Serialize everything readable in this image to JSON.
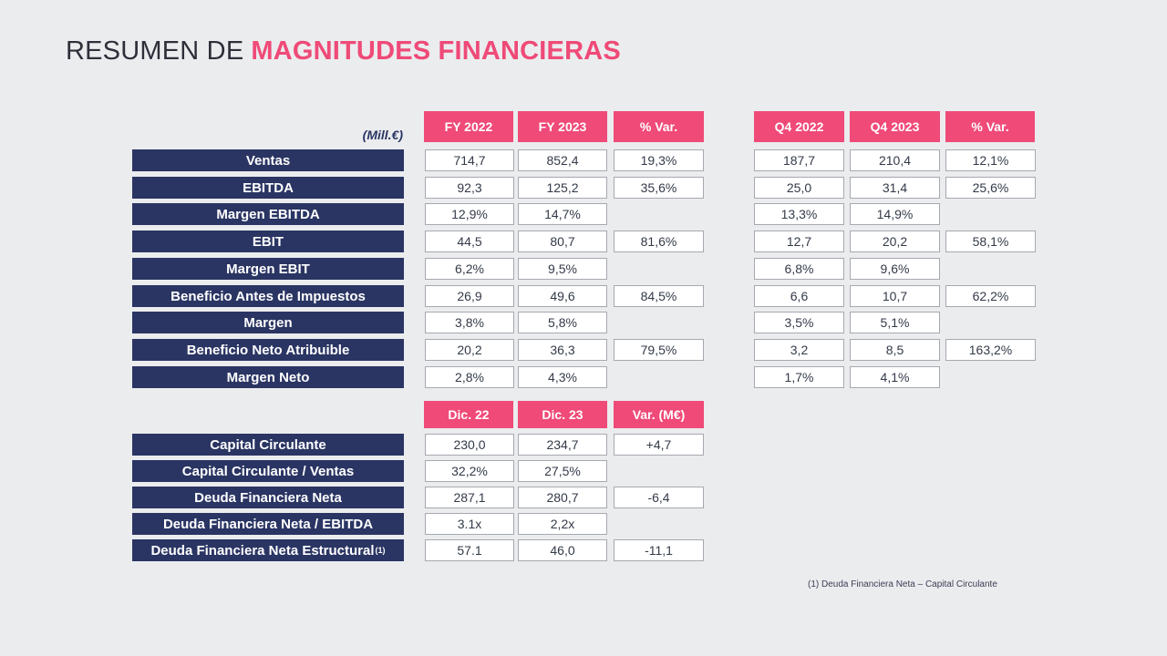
{
  "title": {
    "part1": "RESUMEN DE",
    "part2": "MAGNITUDES FINANCIERAS"
  },
  "units": "(Mill.€)",
  "headers_top": [
    "FY 2022",
    "FY 2023",
    "% Var.",
    "Q4 2022",
    "Q4 2023",
    "% Var."
  ],
  "rows_top": [
    {
      "label": "Ventas",
      "vals": [
        "714,7",
        "852,4",
        "19,3%",
        "187,7",
        "210,4",
        "12,1%"
      ]
    },
    {
      "label": "EBITDA",
      "vals": [
        "92,3",
        "125,2",
        "35,6%",
        "25,0",
        "31,4",
        "25,6%"
      ]
    },
    {
      "label": "Margen EBITDA",
      "vals": [
        "12,9%",
        "14,7%",
        "",
        "13,3%",
        "14,9%",
        ""
      ]
    },
    {
      "label": "EBIT",
      "vals": [
        "44,5",
        "80,7",
        "81,6%",
        "12,7",
        "20,2",
        "58,1%"
      ]
    },
    {
      "label": "Margen EBIT",
      "vals": [
        "6,2%",
        "9,5%",
        "",
        "6,8%",
        "9,6%",
        ""
      ]
    },
    {
      "label": "Beneficio Antes de Impuestos",
      "vals": [
        "26,9",
        "49,6",
        "84,5%",
        "6,6",
        "10,7",
        "62,2%"
      ]
    },
    {
      "label": "Margen",
      "vals": [
        "3,8%",
        "5,8%",
        "",
        "3,5%",
        "5,1%",
        ""
      ]
    },
    {
      "label": "Beneficio Neto Atribuible",
      "vals": [
        "20,2",
        "36,3",
        "79,5%",
        "3,2",
        "8,5",
        "163,2%"
      ]
    },
    {
      "label": "Margen Neto",
      "vals": [
        "2,8%",
        "4,3%",
        "",
        "1,7%",
        "4,1%",
        ""
      ]
    }
  ],
  "headers_bottom": [
    "Dic. 22",
    "Dic. 23",
    "Var. (M€)"
  ],
  "rows_bottom": [
    {
      "label": "Capital Circulante",
      "vals": [
        "230,0",
        "234,7",
        "+4,7"
      ]
    },
    {
      "label": "Capital Circulante / Ventas",
      "vals": [
        "32,2%",
        "27,5%",
        ""
      ]
    },
    {
      "label": "Deuda Financiera Neta",
      "vals": [
        "287,1",
        "280,7",
        "-6,4"
      ]
    },
    {
      "label": "Deuda Financiera Neta / EBITDA",
      "vals": [
        "3.1x",
        "2,2x",
        ""
      ]
    },
    {
      "label": "Deuda Financiera Neta Estructural",
      "sup": "(1)",
      "vals": [
        "57.1",
        "46,0",
        "-11,1"
      ]
    }
  ],
  "footnote": "(1) Deuda Financiera Neta – Capital Circulante"
}
